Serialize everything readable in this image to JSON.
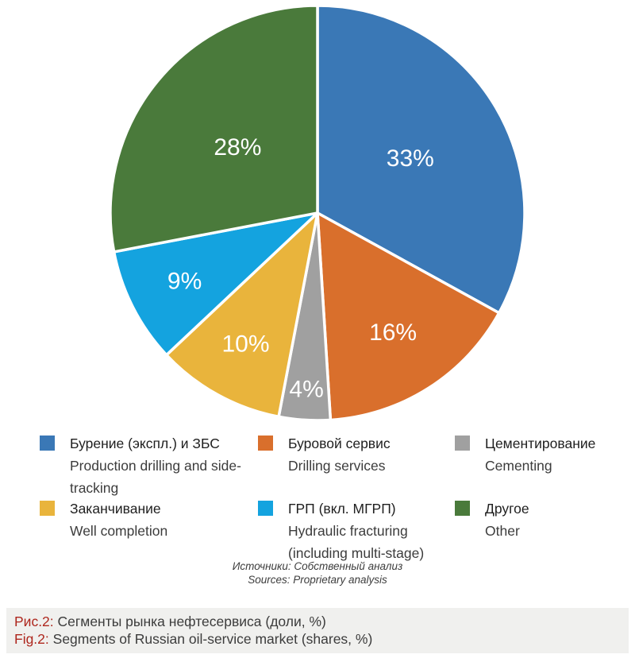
{
  "chart_data": {
    "type": "pie",
    "title": "",
    "direction": "clockwise",
    "start_angle_deg": 0,
    "legend_position": "bottom",
    "slices": [
      {
        "label_ru": "Бурение (экспл.) и ЗБС",
        "label_en": "Production drilling and side-tracking",
        "value": 33,
        "pct_label": "33%",
        "color": "#3a78b6"
      },
      {
        "label_ru": "Буровой сервис",
        "label_en": "Drilling services",
        "value": 16,
        "pct_label": "16%",
        "color": "#d96f2c"
      },
      {
        "label_ru": "Цементирование",
        "label_en": "Cementing",
        "value": 4,
        "pct_label": "4%",
        "color": "#a0a0a0"
      },
      {
        "label_ru": "Заканчивание",
        "label_en": "Well completion",
        "value": 10,
        "pct_label": "10%",
        "color": "#e9b43c"
      },
      {
        "label_ru": "ГРП (вкл. МГРП)",
        "label_en": "Hydraulic fracturing (including multi-stage)",
        "value": 9,
        "pct_label": "9%",
        "color": "#14a3df"
      },
      {
        "label_ru": "Другое",
        "label_en": "Other",
        "value": 28,
        "pct_label": "28%",
        "color": "#4a7a3b"
      }
    ],
    "label_radius_frac": [
      0.52,
      0.68,
      0.85,
      0.72,
      0.72,
      0.5
    ]
  },
  "sources": {
    "line1": "Источники: Собственный анализ",
    "line2": "Sources: Proprietary analysis"
  },
  "caption": {
    "prefix_ru": "Рис.2:",
    "text_ru": "Сегменты рынка нефтесервиса (доли, %)",
    "prefix_en": "Fig.2:",
    "text_en": "Segments of Russian oil-service market (shares, %)",
    "prefix_color": "#ae271e",
    "band_color": "#f0f0ee"
  }
}
